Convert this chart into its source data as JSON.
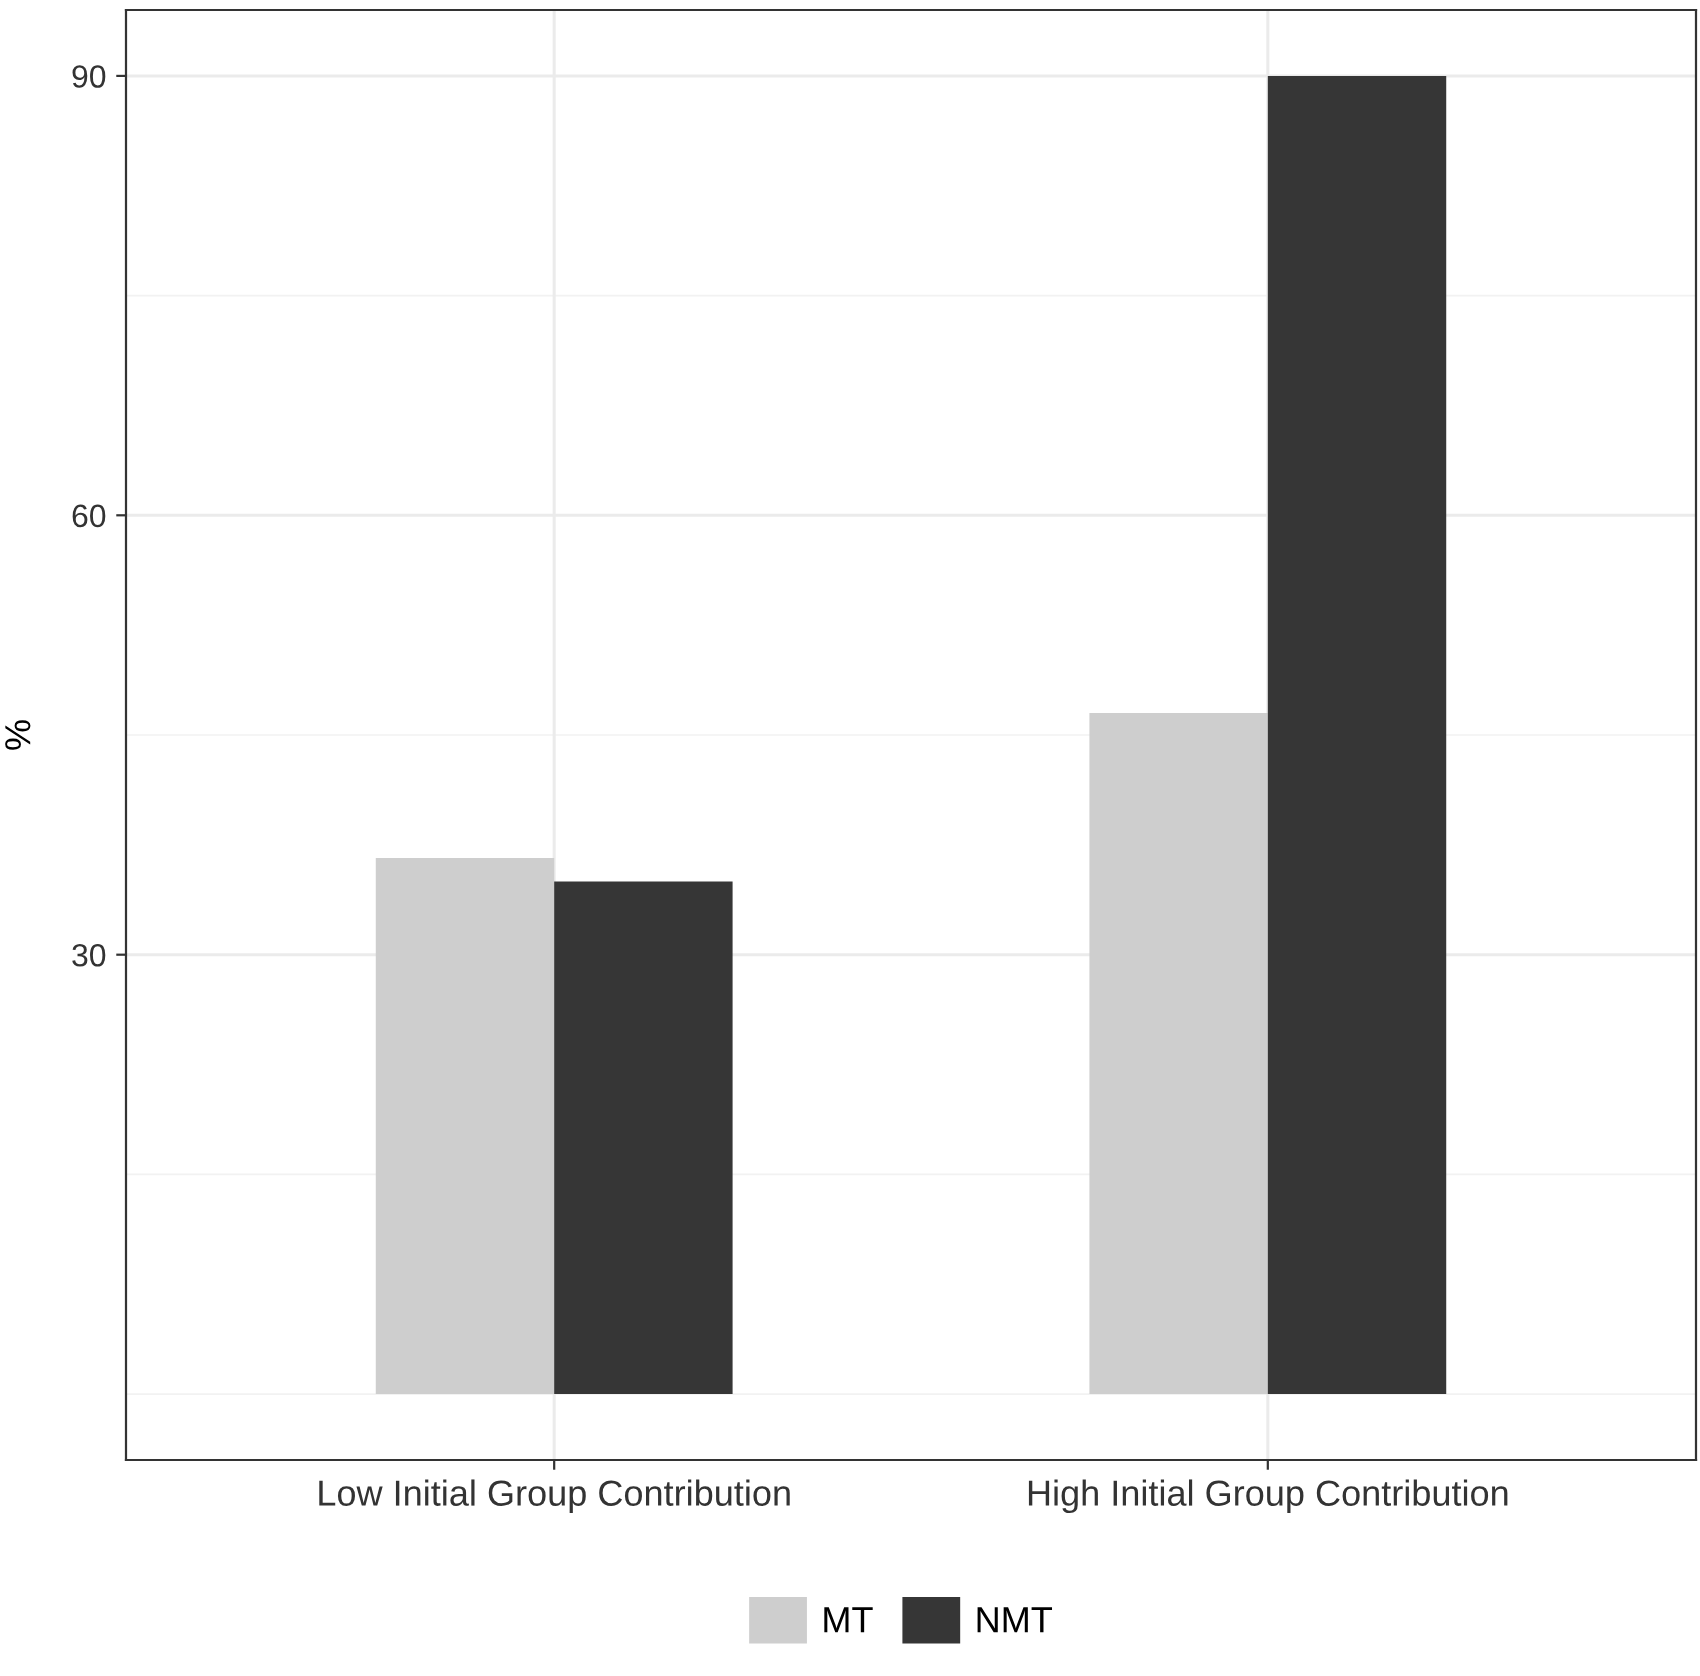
{
  "chart_data": {
    "type": "bar",
    "ylabel": "%",
    "categories": [
      "Low Initial Group Contribution",
      "High Initial Group Contribution"
    ],
    "series": [
      {
        "name": "MT",
        "color": "#cecece",
        "values": [
          36.6,
          46.5
        ]
      },
      {
        "name": "NMT",
        "color": "#363636",
        "values": [
          35.0,
          90.0
        ]
      }
    ],
    "ylim": [
      -4.5,
      94.5
    ],
    "yticks": [
      30,
      60,
      90
    ],
    "grid": true,
    "legend": "bottom"
  }
}
